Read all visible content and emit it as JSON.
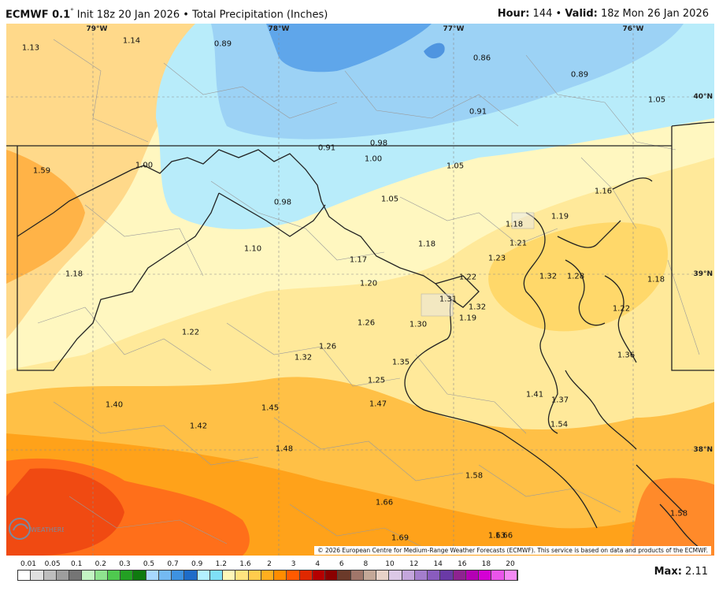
{
  "header": {
    "model": "ECMWF 0.1",
    "degree": "°",
    "init": "Init 18z 20 Jan 2026",
    "bullet": "•",
    "product": "Total Precipitation (Inches)",
    "hour_label": "Hour:",
    "hour_value": "144",
    "valid_label": "Valid:",
    "valid_value": "18z Mon 26 Jan 2026"
  },
  "map": {
    "longitude_labels": [
      "79°W",
      "78°W",
      "77°W",
      "76°W"
    ],
    "latitude_labels": [
      "40°N",
      "39°N",
      "38°N"
    ],
    "values": [
      "1.13",
      "1.14",
      "0.89",
      "0.86",
      "0.89",
      "1.05",
      "0.91",
      "0.91",
      "0.98",
      "1.59",
      "1.00",
      "1.00",
      "1.05",
      "1.16",
      "1.19",
      "0.98",
      "1.05",
      "1.18",
      "1.21",
      "1.18",
      "1.10",
      "1.17",
      "1.18",
      "1.23",
      "1.32",
      "1.28",
      "1.18",
      "1.20",
      "1.22",
      "1.22",
      "1.26",
      "1.31",
      "1.32",
      "1.19",
      "1.22",
      "1.26",
      "1.30",
      "1.32",
      "1.35",
      "1.36",
      "1.25",
      "1.41",
      "1.37",
      "1.40",
      "1.45",
      "1.47",
      "1.42",
      "1.54",
      "1.48",
      "1.58",
      "1.58",
      "1.66",
      "1.69",
      "1.63",
      "1.66"
    ],
    "copyright": "© 2026 European Centre for Medium-Range Weather Forecasts (ECMWF). This service is based on data and products of the ECMWF.",
    "logo_text": "WEATHERBELL"
  },
  "legend": {
    "ticks": [
      "0.01",
      "0.05",
      "0.1",
      "0.2",
      "0.3",
      "0.5",
      "0.7",
      "0.9",
      "1.2",
      "1.6",
      "2",
      "3",
      "4",
      "6",
      "8",
      "10",
      "12",
      "14",
      "16",
      "18",
      "20"
    ],
    "colors": [
      "#ffffff",
      "#e0e0e0",
      "#bdbdbd",
      "#9e9e9e",
      "#757575",
      "#c3f5c3",
      "#8fe38f",
      "#4fc94f",
      "#23a023",
      "#0f7a0f",
      "#a8d8ff",
      "#74baf2",
      "#3e92e0",
      "#1e6cc8",
      "#b3f0ff",
      "#7fe0f7",
      "#fff7b8",
      "#ffe480",
      "#ffcc4d",
      "#ffae1f",
      "#ff8c00",
      "#ff5a00",
      "#e02800",
      "#b40000",
      "#8a0000",
      "#6b3a2a",
      "#a0766a",
      "#c4a898",
      "#e8d2c8",
      "#dcc8e6",
      "#c4a6dc",
      "#a47ecc",
      "#8a5cbe",
      "#6a3aa6",
      "#8e2390",
      "#b400b4",
      "#d400d4",
      "#ea55ea",
      "#f58af5"
    ],
    "max_label": "Max:",
    "max_value": "2.11"
  }
}
